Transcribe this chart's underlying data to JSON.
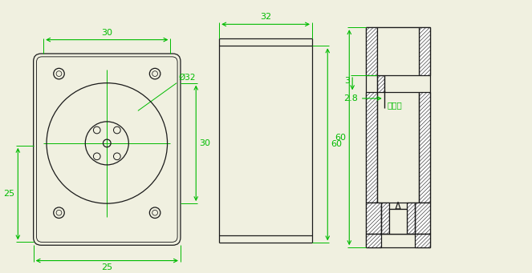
{
  "bg_color": "#f0f0e0",
  "line_color": "#1a1a1a",
  "dim_color": "#00bb00",
  "annotations": {
    "top_width": "30",
    "bottom_width": "25",
    "left_height": "25",
    "circle_label": "Ø32",
    "side_top_width": "32",
    "side_height": "60",
    "side_width_label": "30",
    "dim3_label": "3",
    "dim28_label": "2.8",
    "photosurface": "光敏面"
  }
}
